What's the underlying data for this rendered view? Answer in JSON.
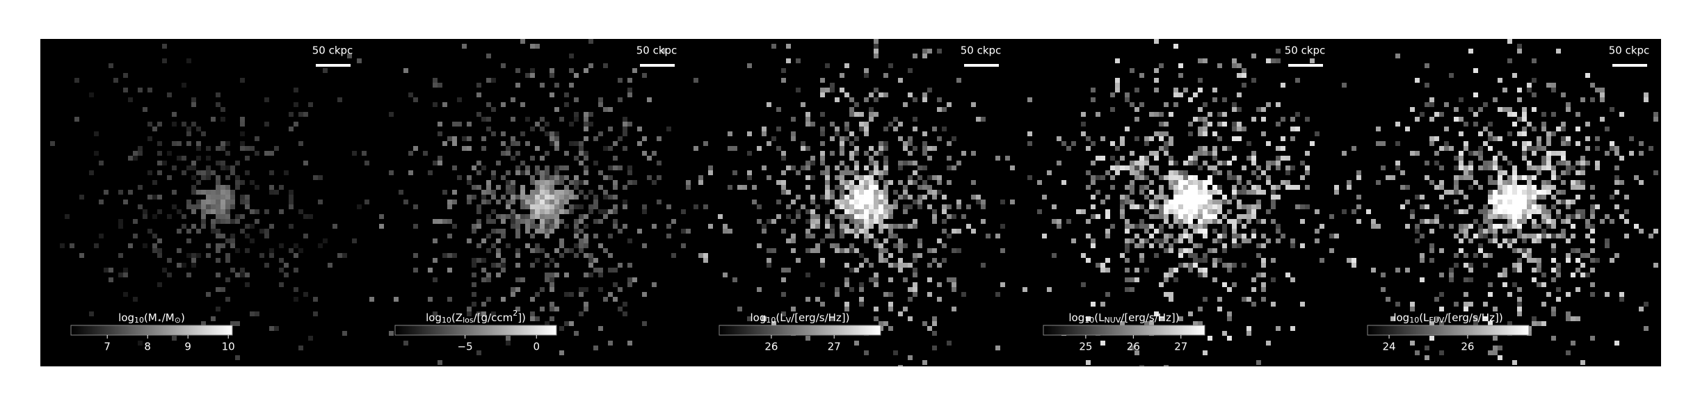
{
  "panels": [
    {
      "scale_bar": "50 ckpc",
      "colorbar": {
        "label": [
          {
            "text": "log"
          },
          {
            "text": "10",
            "shift": "sub"
          },
          {
            "text": "(M"
          },
          {
            "text": "⋆",
            "shift": "sub"
          },
          {
            "text": "/M"
          },
          {
            "text": "⊙",
            "shift": "sub"
          },
          {
            "text": ")"
          }
        ],
        "clim": [
          6.1,
          10.1
        ],
        "ticks": [
          7,
          8,
          9,
          10
        ]
      }
    },
    {
      "scale_bar": "50 ckpc",
      "colorbar": {
        "label": [
          {
            "text": "log"
          },
          {
            "text": "10",
            "shift": "sub"
          },
          {
            "text": "(Z"
          },
          {
            "text": "los",
            "shift": "sub"
          },
          {
            "text": "/[g/ccm"
          },
          {
            "text": "2",
            "shift": "super"
          },
          {
            "text": "])"
          }
        ],
        "clim": [
          -9.9,
          1.4
        ],
        "ticks": [
          {
            "value": -5,
            "label": "−5"
          },
          0
        ]
      }
    },
    {
      "scale_bar": "50 ckpc",
      "colorbar": {
        "label": [
          {
            "text": "log"
          },
          {
            "text": "10",
            "shift": "sub"
          },
          {
            "text": "(L"
          },
          {
            "text": "V",
            "shift": "sub"
          },
          {
            "text": "/[erg/s/Hz])"
          }
        ],
        "clim": [
          25.17,
          27.74
        ],
        "ticks": [
          26,
          27
        ]
      }
    },
    {
      "scale_bar": "50 ckpc",
      "colorbar": {
        "label": [
          {
            "text": "log"
          },
          {
            "text": "10",
            "shift": "sub"
          },
          {
            "text": "(L"
          },
          {
            "text": "NUV",
            "shift": "sub"
          },
          {
            "text": "/[erg/s/Hz])"
          }
        ],
        "clim": [
          24.11,
          27.5
        ],
        "ticks": [
          25,
          26,
          27
        ]
      }
    },
    {
      "scale_bar": "50 ckpc",
      "colorbar": {
        "label": [
          {
            "text": "log"
          },
          {
            "text": "10",
            "shift": "sub"
          },
          {
            "text": "(L"
          },
          {
            "text": "FUV",
            "shift": "sub"
          },
          {
            "text": "/[erg/s/Hz])"
          }
        ],
        "clim": [
          23.45,
          27.56
        ],
        "ticks": [
          24,
          26
        ]
      }
    }
  ]
}
